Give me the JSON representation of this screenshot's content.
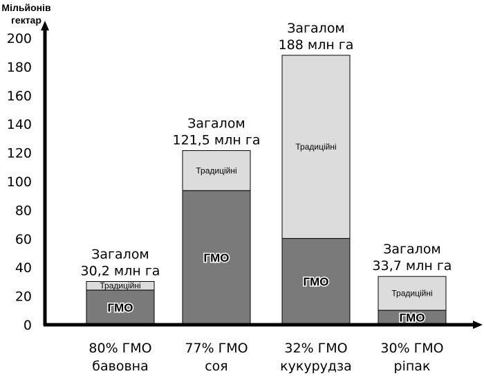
{
  "chart_data": {
    "type": "bar",
    "stacked": true,
    "ylabel": "Мільйонів гектар",
    "ylabel_lines": [
      "Мільйонів",
      "гектар"
    ],
    "ylim": [
      0,
      200
    ],
    "yticks": [
      0,
      20,
      40,
      60,
      80,
      100,
      120,
      140,
      160,
      180,
      200
    ],
    "grid": false,
    "categories": [
      {
        "percent_label": "80% ГМО",
        "crop": "бавовна",
        "total_line1": "Загалом",
        "total_line2": "30,2 млн га",
        "total": 30.2,
        "gmo": 24.2,
        "traditional": 6.0
      },
      {
        "percent_label": "77% ГМО",
        "crop": "соя",
        "total_line1": "Загалом",
        "total_line2": "121,5 млн га",
        "total": 121.5,
        "gmo": 93.6,
        "traditional": 27.9
      },
      {
        "percent_label": "32% ГМО",
        "crop": "кукурудза",
        "total_line1": "Загалом",
        "total_line2": "188 млн га",
        "total": 188,
        "gmo": 60.2,
        "traditional": 127.8
      },
      {
        "percent_label": "30% ГМО",
        "crop": "ріпак",
        "total_line1": "Загалом",
        "total_line2": "33,7 млн га",
        "total": 33.7,
        "gmo": 10.1,
        "traditional": 23.6
      }
    ],
    "series": [
      {
        "name": "ГМО",
        "label": "ГМО",
        "color": "#7a7a7a"
      },
      {
        "name": "Традиційні",
        "label": "Традиційні",
        "color": "#dcdcdc"
      }
    ]
  }
}
